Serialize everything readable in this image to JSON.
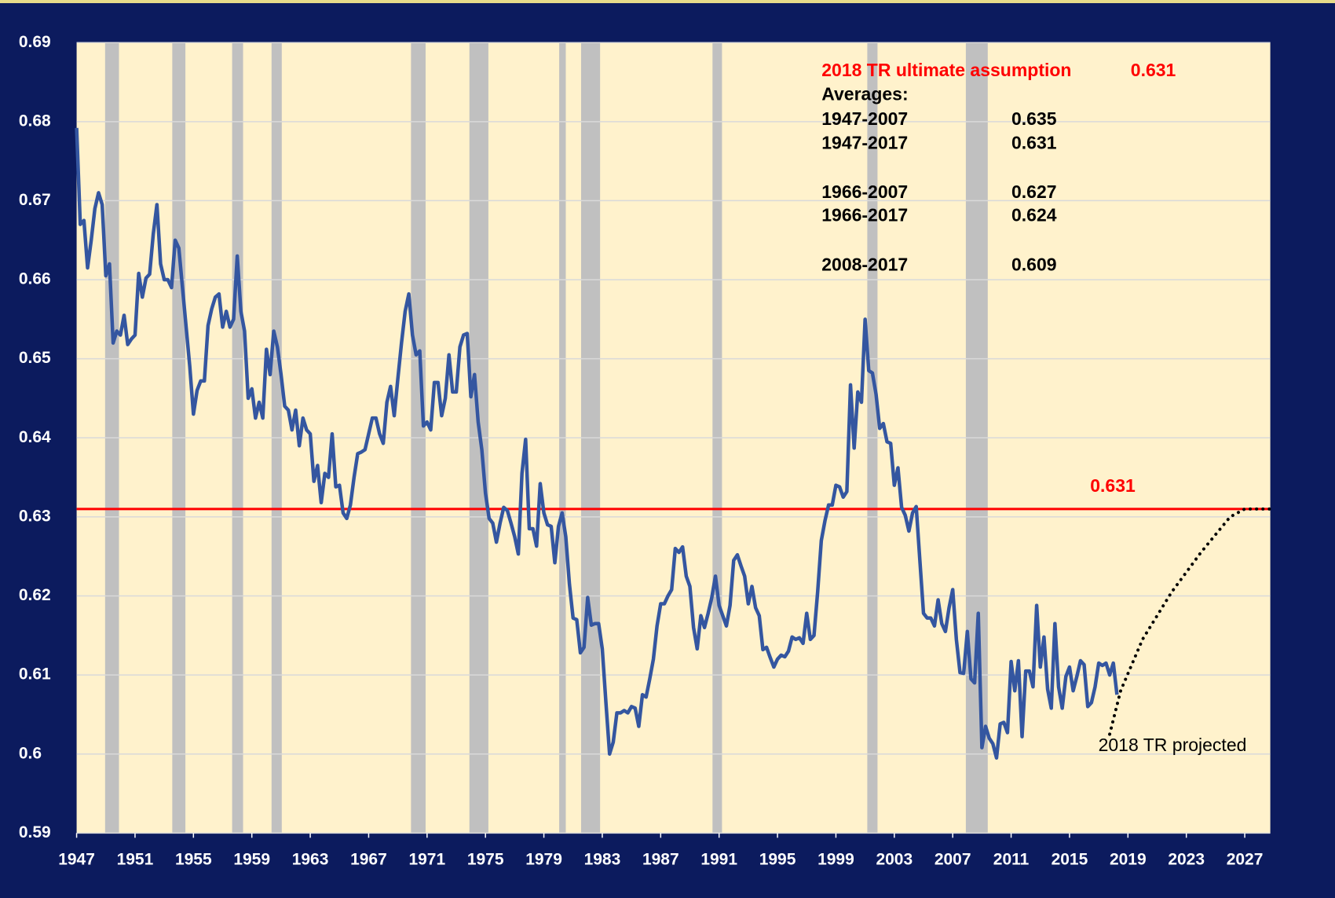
{
  "chart_data": {
    "type": "line",
    "xlim": [
      1947,
      2028.75
    ],
    "xticks": [
      1947,
      1951,
      1955,
      1959,
      1963,
      1967,
      1971,
      1975,
      1979,
      1983,
      1987,
      1991,
      1995,
      1999,
      2003,
      2007,
      2011,
      2015,
      2019,
      2023,
      2027
    ],
    "ylim": [
      0.59,
      0.69
    ],
    "yticks": [
      0.59,
      0.6,
      0.61,
      0.62,
      0.63,
      0.64,
      0.65,
      0.66,
      0.67,
      0.68,
      0.69
    ],
    "grid": true,
    "shaded_periods": [
      [
        1948.95,
        1949.9
      ],
      [
        1953.55,
        1954.45
      ],
      [
        1957.65,
        1958.4
      ],
      [
        1960.35,
        1961.05
      ],
      [
        1969.9,
        1970.9
      ],
      [
        1973.9,
        1975.2
      ],
      [
        1980.05,
        1980.5
      ],
      [
        1981.55,
        1982.85
      ],
      [
        1990.55,
        1991.2
      ],
      [
        2001.15,
        2001.85
      ],
      [
        2007.9,
        2009.4
      ]
    ],
    "reference_line": {
      "value": 0.631,
      "color": "#ff0000"
    },
    "annotations": {
      "assumption": {
        "label": "2018 TR ultimate assumption",
        "value": 0.631
      },
      "averages_title": "Averages:",
      "averages": [
        {
          "period": "1947-2007",
          "value": 0.635
        },
        {
          "period": "1947-2017",
          "value": 0.631
        },
        {
          "period": "1966-2007",
          "value": 0.627
        },
        {
          "period": "1966-2017",
          "value": 0.624
        },
        {
          "period": "2008-2017",
          "value": 0.609
        }
      ]
    },
    "series": [
      {
        "color": "#3456a0",
        "style": "solid",
        "x": [
          1947,
          1947.25,
          1947.5,
          1947.75,
          1948,
          1948.25,
          1948.5,
          1948.75,
          1949,
          1949.25,
          1949.5,
          1949.75,
          1950,
          1950.25,
          1950.5,
          1950.75,
          1951,
          1951.25,
          1951.5,
          1951.75,
          1952,
          1952.25,
          1952.5,
          1952.75,
          1953,
          1953.25,
          1953.5,
          1953.75,
          1954,
          1954.25,
          1954.5,
          1954.75,
          1955,
          1955.25,
          1955.5,
          1955.75,
          1956,
          1956.25,
          1956.5,
          1956.75,
          1957,
          1957.25,
          1957.5,
          1957.75,
          1958,
          1958.25,
          1958.5,
          1958.75,
          1959,
          1959.25,
          1959.5,
          1959.75,
          1960,
          1960.25,
          1960.5,
          1960.75,
          1961,
          1961.25,
          1961.5,
          1961.75,
          1962,
          1962.25,
          1962.5,
          1962.75,
          1963,
          1963.25,
          1963.5,
          1963.75,
          1964,
          1964.25,
          1964.5,
          1964.75,
          1965,
          1965.25,
          1965.5,
          1965.75,
          1966,
          1966.25,
          1966.5,
          1966.75,
          1967,
          1967.25,
          1967.5,
          1967.75,
          1968,
          1968.25,
          1968.5,
          1968.75,
          1969,
          1969.25,
          1969.5,
          1969.75,
          1970,
          1970.25,
          1970.5,
          1970.75,
          1971,
          1971.25,
          1971.5,
          1971.75,
          1972,
          1972.25,
          1972.5,
          1972.75,
          1973,
          1973.25,
          1973.5,
          1973.75,
          1974,
          1974.25,
          1974.5,
          1974.75,
          1975,
          1975.25,
          1975.5,
          1975.75,
          1976,
          1976.25,
          1976.5,
          1976.75,
          1977,
          1977.25,
          1977.5,
          1977.75,
          1978,
          1978.25,
          1978.5,
          1978.75,
          1979,
          1979.25,
          1979.5,
          1979.75,
          1980,
          1980.25,
          1980.5,
          1980.75,
          1981,
          1981.25,
          1981.5,
          1981.75,
          1982,
          1982.25,
          1982.5,
          1982.75,
          1983,
          1983.25,
          1983.5,
          1983.75,
          1984,
          1984.25,
          1984.5,
          1984.75,
          1985,
          1985.25,
          1985.5,
          1985.75,
          1986,
          1986.25,
          1986.5,
          1986.75,
          1987,
          1987.25,
          1987.5,
          1987.75,
          1988,
          1988.25,
          1988.5,
          1988.75,
          1989,
          1989.25,
          1989.5,
          1989.75,
          1990,
          1990.25,
          1990.5,
          1990.75,
          1991,
          1991.25,
          1991.5,
          1991.75,
          1992,
          1992.25,
          1992.5,
          1992.75,
          1993,
          1993.25,
          1993.5,
          1993.75,
          1994,
          1994.25,
          1994.5,
          1994.75,
          1995,
          1995.25,
          1995.5,
          1995.75,
          1996,
          1996.25,
          1996.5,
          1996.75,
          1997,
          1997.25,
          1997.5,
          1997.75,
          1998,
          1998.25,
          1998.5,
          1998.75,
          1999,
          1999.25,
          1999.5,
          1999.75,
          2000,
          2000.25,
          2000.5,
          2000.75,
          2001,
          2001.25,
          2001.5,
          2001.75,
          2002,
          2002.25,
          2002.5,
          2002.75,
          2003,
          2003.25,
          2003.5,
          2003.75,
          2004,
          2004.25,
          2004.5,
          2004.75,
          2005,
          2005.25,
          2005.5,
          2005.75,
          2006,
          2006.25,
          2006.5,
          2006.75,
          2007,
          2007.25,
          2007.5,
          2007.75,
          2008,
          2008.25,
          2008.5,
          2008.75,
          2009,
          2009.25,
          2009.5,
          2009.75,
          2010,
          2010.25,
          2010.5,
          2010.75,
          2011,
          2011.25,
          2011.5,
          2011.75,
          2012,
          2012.25,
          2012.5,
          2012.75,
          2013,
          2013.25,
          2013.5,
          2013.75,
          2014,
          2014.25,
          2014.5,
          2014.75,
          2015,
          2015.25,
          2015.5,
          2015.75,
          2016,
          2016.25,
          2016.5,
          2016.75,
          2017,
          2017.25,
          2017.5,
          2017.75,
          2018,
          2018.25
        ],
        "values": [
          0.6792,
          0.667,
          0.6675,
          0.6615,
          0.665,
          0.669,
          0.671,
          0.6695,
          0.6605,
          0.662,
          0.652,
          0.6535,
          0.653,
          0.6555,
          0.6518,
          0.6525,
          0.653,
          0.6608,
          0.6578,
          0.6602,
          0.6607,
          0.6658,
          0.6695,
          0.662,
          0.66,
          0.66,
          0.659,
          0.665,
          0.664,
          0.659,
          0.654,
          0.649,
          0.643,
          0.646,
          0.6472,
          0.6472,
          0.6542,
          0.6563,
          0.6578,
          0.6582,
          0.654,
          0.656,
          0.654,
          0.655,
          0.663,
          0.656,
          0.6535,
          0.645,
          0.6462,
          0.6425,
          0.6445,
          0.6425,
          0.6512,
          0.648,
          0.6535,
          0.6515,
          0.648,
          0.644,
          0.6435,
          0.641,
          0.6435,
          0.639,
          0.6425,
          0.641,
          0.6405,
          0.6345,
          0.6365,
          0.6318,
          0.6355,
          0.635,
          0.6405,
          0.6338,
          0.634,
          0.6305,
          0.6298,
          0.6315,
          0.635,
          0.638,
          0.6382,
          0.6385,
          0.6405,
          0.6425,
          0.6425,
          0.6405,
          0.6393,
          0.6445,
          0.6465,
          0.6428,
          0.6475,
          0.652,
          0.656,
          0.6582,
          0.653,
          0.6505,
          0.651,
          0.6415,
          0.642,
          0.641,
          0.647,
          0.647,
          0.6428,
          0.645,
          0.6505,
          0.6458,
          0.6458,
          0.6515,
          0.653,
          0.6532,
          0.6452,
          0.648,
          0.642,
          0.6385,
          0.633,
          0.6298,
          0.6292,
          0.6268,
          0.6292,
          0.6312,
          0.6308,
          0.6292,
          0.6275,
          0.6253,
          0.6355,
          0.6398,
          0.6285,
          0.6285,
          0.6263,
          0.6342,
          0.6305,
          0.629,
          0.6288,
          0.6242,
          0.6288,
          0.6305,
          0.6275,
          0.6215,
          0.6172,
          0.617,
          0.6128,
          0.6135,
          0.6198,
          0.6163,
          0.6165,
          0.6165,
          0.6133,
          0.6065,
          0.6,
          0.6015,
          0.6052,
          0.6052,
          0.6055,
          0.6052,
          0.606,
          0.6058,
          0.6035,
          0.6075,
          0.6072,
          0.6095,
          0.612,
          0.6162,
          0.619,
          0.619,
          0.62,
          0.6208,
          0.626,
          0.6255,
          0.6262,
          0.6225,
          0.6212,
          0.616,
          0.6133,
          0.6175,
          0.616,
          0.6178,
          0.6198,
          0.6225,
          0.6188,
          0.6175,
          0.6162,
          0.6188,
          0.6245,
          0.6252,
          0.6238,
          0.6225,
          0.619,
          0.6212,
          0.6185,
          0.6175,
          0.6132,
          0.6135,
          0.6122,
          0.611,
          0.612,
          0.6125,
          0.6123,
          0.613,
          0.6148,
          0.6145,
          0.6147,
          0.614,
          0.6178,
          0.6145,
          0.615,
          0.6205,
          0.627,
          0.6295,
          0.6315,
          0.6315,
          0.634,
          0.6338,
          0.6325,
          0.6332,
          0.6467,
          0.6387,
          0.6458,
          0.6445,
          0.655,
          0.6485,
          0.6482,
          0.6455,
          0.6412,
          0.6418,
          0.6395,
          0.6393,
          0.634,
          0.6362,
          0.6312,
          0.6302,
          0.6282,
          0.6305,
          0.6313,
          0.6245,
          0.6178,
          0.6172,
          0.6172,
          0.6162,
          0.6195,
          0.6165,
          0.6155,
          0.6185,
          0.6208,
          0.6145,
          0.6103,
          0.6102,
          0.6155,
          0.6095,
          0.609,
          0.6178,
          0.6008,
          0.6035,
          0.602,
          0.6013,
          0.5995,
          0.6038,
          0.604,
          0.6027,
          0.6117,
          0.608,
          0.6118,
          0.6022,
          0.6105,
          0.6105,
          0.6085,
          0.6188,
          0.611,
          0.6148,
          0.6082,
          0.6058,
          0.6165,
          0.6085,
          0.6058,
          0.6098,
          0.611,
          0.608,
          0.6098,
          0.6118,
          0.6113,
          0.606,
          0.6065,
          0.6085,
          0.6115,
          0.6112,
          0.6115,
          0.61,
          0.6115,
          0.6075
        ]
      },
      {
        "name": "2018 TR projected",
        "color": "#000000",
        "style": "dotted",
        "x": [
          2017.75,
          2018.5,
          2020,
          2022,
          2024,
          2026,
          2027,
          2028.75
        ],
        "values": [
          0.6025,
          0.608,
          0.6145,
          0.6205,
          0.6255,
          0.63,
          0.631,
          0.631
        ]
      }
    ]
  }
}
